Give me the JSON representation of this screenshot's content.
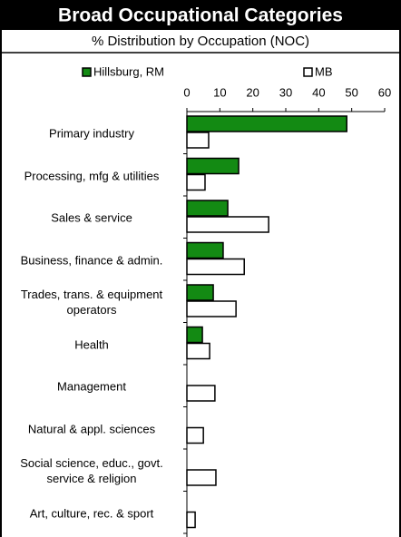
{
  "chart_data": {
    "type": "bar",
    "orientation": "horizontal",
    "title": "Broad Occupational Categories",
    "subtitle": "% Distribution by Occupation (NOC)",
    "categories": [
      "Primary industry",
      "Processing, mfg & utilities",
      "Sales & service",
      "Business, finance & admin.",
      "Trades, trans. & equipment operators",
      "Health",
      "Management",
      "Natural & appl. sciences",
      "Social science, educ., govt. service & religion",
      "Art, culture, rec. & sport"
    ],
    "series": [
      {
        "name": "Hillsburg, RM",
        "color": "#138a13",
        "values": [
          48.5,
          15.7,
          12.4,
          11,
          8,
          4.7,
          0,
          0,
          0,
          0
        ]
      },
      {
        "name": "MB",
        "color": "#ffffff",
        "values": [
          6.6,
          5.5,
          24.8,
          17.4,
          14.9,
          6.9,
          8.5,
          5,
          8.8,
          2.5
        ]
      }
    ],
    "xlim": [
      0,
      60
    ],
    "xticks": [
      0,
      10,
      20,
      30,
      40,
      50,
      60
    ],
    "legend": "top"
  }
}
